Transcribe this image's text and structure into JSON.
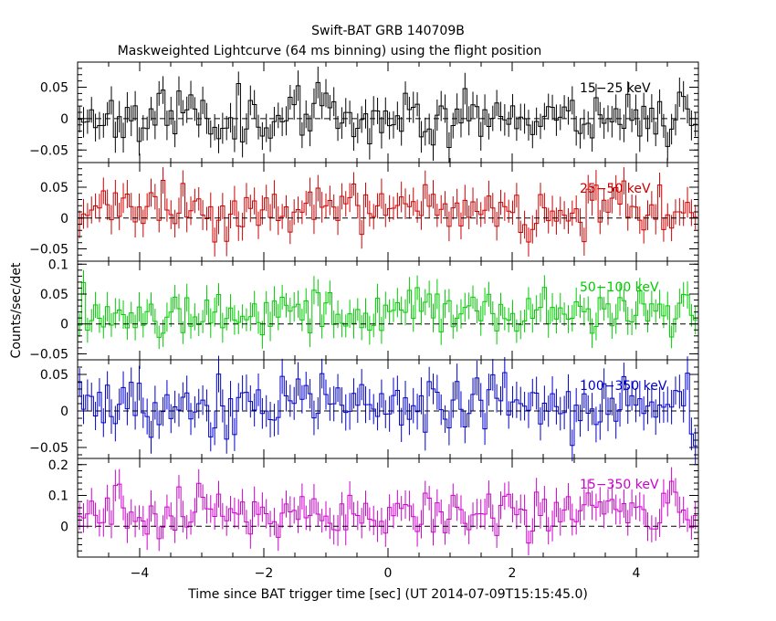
{
  "chart_data": {
    "type": "line",
    "title": "Swift-BAT GRB 140709B",
    "subtitle": "Maskweighted Lightcurve (64 ms binning) using the flight position",
    "xlabel": "Time since BAT trigger time [sec] (UT 2014-07-09T15:15:45.0)",
    "ylabel": "Counts/sec/det",
    "xlim": [
      -5,
      5
    ],
    "x_ticks": [
      -4,
      -2,
      0,
      2,
      4
    ],
    "x_tick_labels": [
      "−4",
      "−2",
      "0",
      "2",
      "4"
    ],
    "bin_width_sec": 0.064,
    "zero_line": "dashed",
    "panels": [
      {
        "name": "15−25 keV",
        "color": "#000000",
        "ylim": [
          -0.07,
          0.09
        ],
        "y_ticks": [
          -0.05,
          0,
          0.05
        ],
        "y_tick_labels": [
          "−0.05",
          "0",
          "0.05"
        ],
        "level": 0.005,
        "noise": 0.022,
        "err": 0.022,
        "seed": 11
      },
      {
        "name": "25−50 keV",
        "color": "#cc0000",
        "ylim": [
          -0.07,
          0.09
        ],
        "y_ticks": [
          -0.05,
          0,
          0.05
        ],
        "y_tick_labels": [
          "−0.05",
          "0",
          "0.05"
        ],
        "level": 0.012,
        "noise": 0.02,
        "err": 0.022,
        "seed": 23
      },
      {
        "name": "50−100 keV",
        "color": "#00cc00",
        "ylim": [
          -0.06,
          0.105
        ],
        "y_ticks": [
          -0.05,
          0,
          0.05,
          0.1
        ],
        "y_tick_labels": [
          "−0.05",
          "0",
          "0.05",
          "0.1"
        ],
        "level": 0.02,
        "noise": 0.02,
        "err": 0.022,
        "seed": 37
      },
      {
        "name": "100−350 keV",
        "color": "#0000cc",
        "ylim": [
          -0.065,
          0.07
        ],
        "y_ticks": [
          -0.05,
          0,
          0.05
        ],
        "y_tick_labels": [
          "−0.05",
          "0",
          "0.05"
        ],
        "level": 0.008,
        "noise": 0.022,
        "err": 0.022,
        "seed": 53
      },
      {
        "name": "15−350 keV",
        "color": "#cc00cc",
        "ylim": [
          -0.1,
          0.22
        ],
        "y_ticks": [
          0,
          0.1,
          0.2
        ],
        "y_tick_labels": [
          "0",
          "0.1",
          "0.2"
        ],
        "level": 0.045,
        "noise": 0.04,
        "err": 0.045,
        "seed": 71
      }
    ]
  }
}
